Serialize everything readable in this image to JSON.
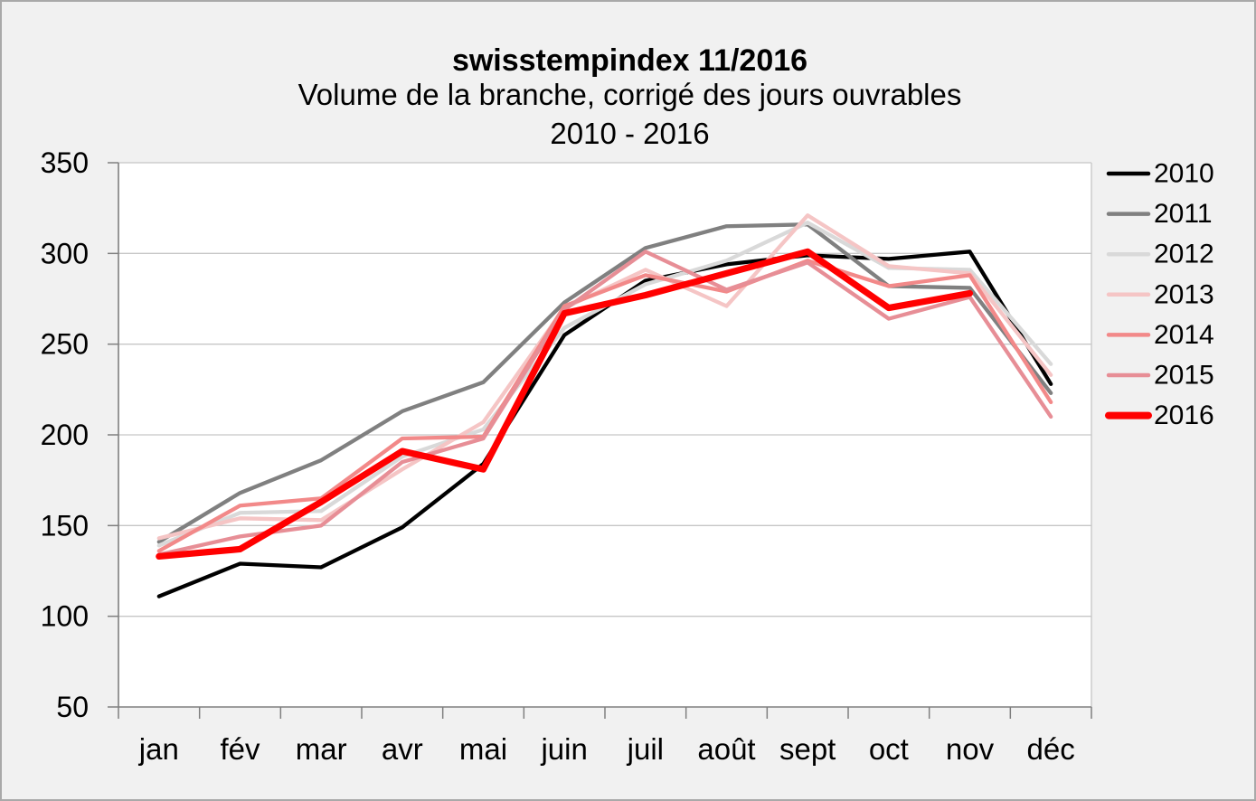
{
  "figure": {
    "title": "swisstempindex 11/2016",
    "subtitle": "Volume de la branche, corrigé des jours ouvrables",
    "subtitle2": "2010 - 2016"
  },
  "chart_data": {
    "type": "line",
    "title": "swisstempindex 11/2016",
    "subtitle": "Volume de la branche, corrigé des jours ouvrables",
    "period": "2010 - 2016",
    "categories": [
      "jan",
      "fév",
      "mar",
      "avr",
      "mai",
      "juin",
      "juil",
      "août",
      "sept",
      "oct",
      "nov",
      "déc"
    ],
    "ylim": [
      50,
      350
    ],
    "ytick_step": 50,
    "grid": true,
    "legend_position": "right",
    "series": [
      {
        "name": "2010",
        "color": "#000000",
        "width": 4.3,
        "values": [
          111,
          129,
          127,
          149,
          184,
          255,
          285,
          294,
          299,
          297,
          301,
          228
        ]
      },
      {
        "name": "2011",
        "color": "#808080",
        "width": 4.3,
        "values": [
          141,
          168,
          186,
          213,
          229,
          273,
          303,
          315,
          316,
          282,
          281,
          223
        ]
      },
      {
        "name": "2012",
        "color": "#D9D9D9",
        "width": 4.3,
        "values": [
          139,
          157,
          158,
          188,
          203,
          259,
          283,
          296,
          317,
          292,
          291,
          239
        ]
      },
      {
        "name": "2013",
        "color": "#F5C5C5",
        "width": 4.3,
        "values": [
          143,
          154,
          153,
          181,
          207,
          270,
          291,
          271,
          321,
          293,
          289,
          233
        ]
      },
      {
        "name": "2014",
        "color": "#F28989",
        "width": 4.3,
        "values": [
          136,
          161,
          165,
          198,
          199,
          271,
          288,
          279,
          296,
          282,
          288,
          218
        ]
      },
      {
        "name": "2015",
        "color": "#E78E96",
        "width": 4.3,
        "values": [
          134,
          144,
          150,
          185,
          198,
          269,
          301,
          280,
          295,
          264,
          276,
          210
        ]
      },
      {
        "name": "2016",
        "color": "#FF0000",
        "width": 7.2,
        "values": [
          133,
          137,
          163,
          191,
          181,
          267,
          277,
          289,
          301,
          270,
          278
        ]
      }
    ]
  },
  "colors": {
    "page_bg": "#F1F1F1",
    "plot_bg": "#FFFFFF",
    "grid": "#C6C6C6",
    "axis": "#7F7F7F",
    "frame_border": "#A9A9A9",
    "text": "#000000"
  }
}
